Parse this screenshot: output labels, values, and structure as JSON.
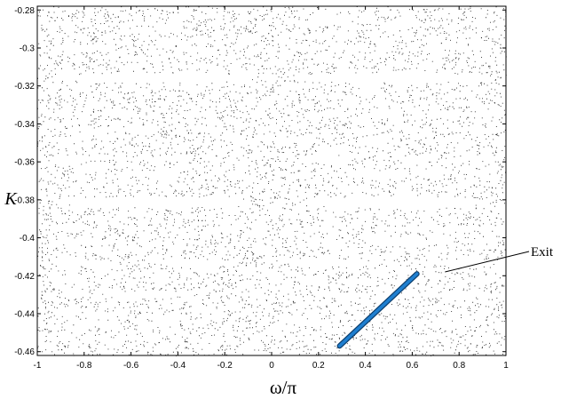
{
  "chart_data": {
    "type": "scatter",
    "title": "",
    "xlabel": "ω/π",
    "ylabel": "K",
    "xlim": [
      -1,
      1
    ],
    "ylim": [
      -0.462,
      -0.278
    ],
    "grid": false,
    "x_ticks": [
      "-1",
      "-0.8",
      "-0.6",
      "-0.4",
      "-0.2",
      "0",
      "0.2",
      "0.4",
      "0.6",
      "0.8",
      "1"
    ],
    "y_ticks": [
      "-0.28",
      "-0.3",
      "-0.32",
      "-0.34",
      "-0.36",
      "-0.38",
      "-0.4",
      "-0.42",
      "-0.44",
      "-0.46"
    ],
    "point_color": "#1a1a1a",
    "islands": [
      {
        "xmin": -0.93,
        "xmax": -0.08,
        "y": -0.3155,
        "hh": 0.0026
      },
      {
        "xmin": 0.08,
        "xmax": 0.96,
        "y": -0.3155,
        "hh": 0.0026
      },
      {
        "xmin": -0.92,
        "xmax": -0.08,
        "y": -0.381,
        "hh": 0.003
      },
      {
        "xmin": 0.12,
        "xmax": 0.93,
        "y": -0.381,
        "hh": 0.003
      },
      {
        "xmin": -0.96,
        "xmax": -0.8,
        "y": -0.287,
        "hh": 0.0011
      },
      {
        "xmin": -0.66,
        "xmax": -0.46,
        "y": -0.287,
        "hh": 0.0011
      },
      {
        "xmin": -0.2,
        "xmax": -0.1,
        "y": -0.287,
        "hh": 0.001
      },
      {
        "xmin": 0.14,
        "xmax": 0.3,
        "y": -0.287,
        "hh": 0.001
      },
      {
        "xmin": 0.48,
        "xmax": 0.66,
        "y": -0.287,
        "hh": 0.0011
      },
      {
        "xmin": 0.8,
        "xmax": 0.95,
        "y": -0.287,
        "hh": 0.001
      },
      {
        "xmin": -0.93,
        "xmax": -0.76,
        "y": -0.3,
        "hh": 0.0012
      },
      {
        "xmin": -0.45,
        "xmax": -0.26,
        "y": -0.3,
        "hh": 0.0012
      },
      {
        "xmin": 0.22,
        "xmax": 0.42,
        "y": -0.3,
        "hh": 0.0012
      },
      {
        "xmin": 0.7,
        "xmax": 0.9,
        "y": -0.3,
        "hh": 0.0012
      },
      {
        "xmin": -0.98,
        "xmax": -0.86,
        "y": -0.335,
        "hh": 0.0013
      },
      {
        "xmin": -0.72,
        "xmax": -0.56,
        "y": -0.335,
        "hh": 0.0013
      },
      {
        "xmin": -0.4,
        "xmax": -0.22,
        "y": -0.335,
        "hh": 0.0013
      },
      {
        "xmin": 0.16,
        "xmax": 0.34,
        "y": -0.335,
        "hh": 0.0014
      },
      {
        "xmin": 0.42,
        "xmax": 0.56,
        "y": -0.335,
        "hh": 0.0012
      },
      {
        "xmin": 0.66,
        "xmax": 0.84,
        "y": -0.335,
        "hh": 0.0013
      },
      {
        "xmin": -0.8,
        "xmax": -0.66,
        "y": -0.343,
        "hh": 0.0011
      },
      {
        "xmin": -0.34,
        "xmax": -0.2,
        "y": -0.343,
        "hh": 0.0011
      },
      {
        "xmin": 0.3,
        "xmax": 0.46,
        "y": -0.343,
        "hh": 0.0011
      },
      {
        "xmin": 0.74,
        "xmax": 0.92,
        "y": -0.343,
        "hh": 0.0011
      },
      {
        "xmin": -0.96,
        "xmax": -0.72,
        "y": -0.358,
        "hh": 0.0016
      },
      {
        "xmin": -0.52,
        "xmax": -0.34,
        "y": -0.358,
        "hh": 0.0014
      },
      {
        "xmin": 0.12,
        "xmax": 0.32,
        "y": -0.358,
        "hh": 0.0015
      },
      {
        "xmin": 0.5,
        "xmax": 0.7,
        "y": -0.358,
        "hh": 0.0014
      },
      {
        "xmin": 0.8,
        "xmax": 0.98,
        "y": -0.358,
        "hh": 0.0015
      },
      {
        "xmin": -0.66,
        "xmax": -0.42,
        "y": -0.366,
        "hh": 0.0017
      },
      {
        "xmin": 0.34,
        "xmax": 0.58,
        "y": -0.366,
        "hh": 0.0016
      },
      {
        "xmin": -0.96,
        "xmax": -0.76,
        "y": -0.395,
        "hh": 0.0013
      },
      {
        "xmin": -0.64,
        "xmax": -0.5,
        "y": -0.395,
        "hh": 0.0012
      },
      {
        "xmin": -0.26,
        "xmax": -0.12,
        "y": -0.395,
        "hh": 0.0012
      },
      {
        "xmin": 0.12,
        "xmax": 0.3,
        "y": -0.395,
        "hh": 0.0012
      },
      {
        "xmin": 0.52,
        "xmax": 0.72,
        "y": -0.395,
        "hh": 0.0013
      },
      {
        "xmin": 0.8,
        "xmax": 0.98,
        "y": -0.395,
        "hh": 0.0012
      },
      {
        "xmin": -0.86,
        "xmax": -0.64,
        "y": -0.402,
        "hh": 0.0013
      },
      {
        "xmin": -0.4,
        "xmax": -0.28,
        "y": -0.402,
        "hh": 0.0011
      },
      {
        "xmin": 0.4,
        "xmax": 0.62,
        "y": -0.402,
        "hh": 0.0013
      },
      {
        "xmin": -0.92,
        "xmax": -0.66,
        "y": -0.413,
        "hh": 0.0017
      },
      {
        "xmin": -0.5,
        "xmax": -0.16,
        "y": -0.413,
        "hh": 0.0019
      },
      {
        "xmin": 0.1,
        "xmax": 0.44,
        "y": -0.413,
        "hh": 0.0019
      },
      {
        "xmin": 0.66,
        "xmax": 0.96,
        "y": -0.413,
        "hh": 0.0017
      },
      {
        "xmin": -0.98,
        "xmax": -0.78,
        "y": -0.422,
        "hh": 0.0012
      },
      {
        "xmin": -0.56,
        "xmax": -0.4,
        "y": -0.422,
        "hh": 0.0012
      },
      {
        "xmin": 0.06,
        "xmax": 0.24,
        "y": -0.422,
        "hh": 0.0012
      },
      {
        "xmin": 0.84,
        "xmax": 0.98,
        "y": -0.422,
        "hh": 0.0012
      },
      {
        "xmin": -0.72,
        "xmax": -0.44,
        "y": -0.43,
        "hh": 0.0015
      },
      {
        "xmin": 0.18,
        "xmax": 0.42,
        "y": -0.43,
        "hh": 0.0015
      },
      {
        "xmin": 0.64,
        "xmax": 0.88,
        "y": -0.43,
        "hh": 0.0014
      },
      {
        "xmin": -0.96,
        "xmax": -0.76,
        "y": -0.438,
        "hh": 0.0013
      },
      {
        "xmin": -0.4,
        "xmax": -0.24,
        "y": -0.438,
        "hh": 0.0012
      },
      {
        "xmin": 0.44,
        "xmax": 0.6,
        "y": -0.438,
        "hh": 0.0012
      },
      {
        "xmin": -0.86,
        "xmax": -0.66,
        "y": -0.445,
        "hh": 0.0015
      },
      {
        "xmin": -0.56,
        "xmax": -0.4,
        "y": -0.445,
        "hh": 0.0013
      },
      {
        "xmin": 0.08,
        "xmax": 0.26,
        "y": -0.445,
        "hh": 0.0013
      },
      {
        "xmin": 0.7,
        "xmax": 0.92,
        "y": -0.445,
        "hh": 0.0014
      },
      {
        "xmin": -0.98,
        "xmax": -0.84,
        "y": -0.453,
        "hh": 0.0012
      },
      {
        "xmin": -0.66,
        "xmax": -0.5,
        "y": -0.453,
        "hh": 0.0012
      },
      {
        "xmin": -0.3,
        "xmax": -0.16,
        "y": -0.453,
        "hh": 0.0012
      },
      {
        "xmin": 0.04,
        "xmax": 0.2,
        "y": -0.453,
        "hh": 0.0012
      },
      {
        "xmin": 0.56,
        "xmax": 0.72,
        "y": -0.453,
        "hh": 0.0012
      },
      {
        "xmin": 0.82,
        "xmax": 0.98,
        "y": -0.453,
        "hh": 0.0012
      }
    ],
    "exit_trajectory": {
      "color": "#1f7fd0",
      "from": [
        0.29,
        -0.457
      ],
      "to": [
        0.62,
        -0.419
      ]
    },
    "annotation": {
      "text": "Exit",
      "points_to": [
        0.74,
        -0.418
      ]
    }
  }
}
